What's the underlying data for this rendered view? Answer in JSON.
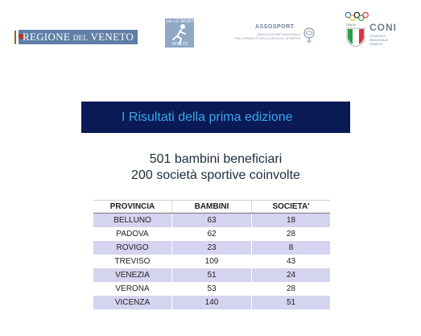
{
  "logos": {
    "regione": {
      "main": "REGIONE",
      "small": "DEL",
      "name": "VENETO"
    },
    "sport": {
      "caption": "per LO SPORT",
      "sub": "VENETO"
    },
    "assosport": {
      "title": "ASSOSPORT",
      "sub_line1": "ASSOCIAZIONE NAZIONALE",
      "sub_line2": "FRA I PRODUTTORI DI ARTICOLI SPORTIVI"
    },
    "coni": {
      "italia": "ITALIA",
      "word": "CONI",
      "sub_line1": "COMITATO",
      "sub_line2": "REGIONALE",
      "sub_line3": "VENETO",
      "olympic_ring_colors": [
        "#2a6fb5",
        "#f2b233",
        "#222222",
        "#2e9d4a",
        "#d8343b"
      ]
    }
  },
  "title": "I Risultati della prima edizione",
  "summary": {
    "line1": "501 bambini beneficiari",
    "line2": "200 società sportive coinvolte"
  },
  "table": {
    "headers": [
      "PROVINCIA",
      "BAMBINI",
      "SOCIETA'"
    ],
    "rows": [
      [
        "BELLUNO",
        "63",
        "18"
      ],
      [
        "PADOVA",
        "62",
        "28"
      ],
      [
        "ROVIGO",
        "23",
        "8"
      ],
      [
        "TREVISO",
        "109",
        "43"
      ],
      [
        "VENEZIA",
        "51",
        "24"
      ],
      [
        "VERONA",
        "53",
        "28"
      ],
      [
        "VICENZA",
        "140",
        "51"
      ]
    ]
  },
  "colors": {
    "title_bar": "#0a1a55",
    "title_text": "#3aa8ea",
    "row_shade": "#d4d4f0"
  }
}
